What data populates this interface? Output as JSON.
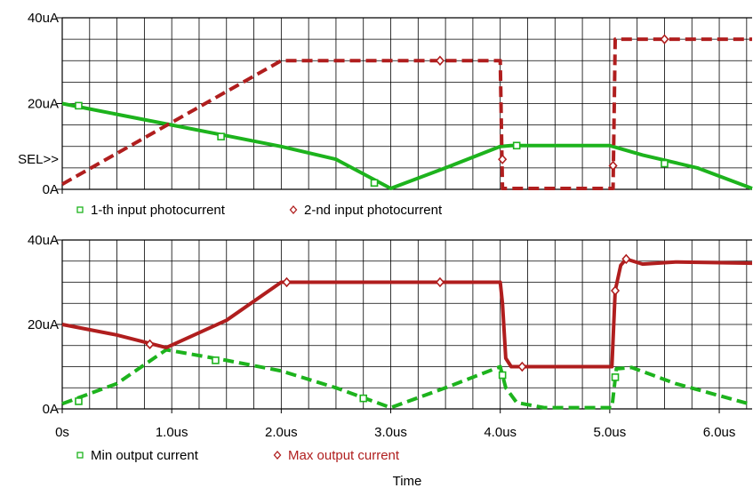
{
  "chart_data": [
    {
      "type": "line",
      "xlim": [
        0,
        6.3
      ],
      "ylim": [
        0,
        40
      ],
      "grid": true,
      "x_ticks": [
        {
          "v": 0,
          "label": ""
        }
      ],
      "y_ticks": [
        {
          "v": 0,
          "label": "0A"
        },
        {
          "v": 20,
          "label": "20uA"
        },
        {
          "v": 40,
          "label": "40uA"
        }
      ],
      "axis_note": "SEL>>",
      "legend_position": "bottom-left",
      "series": [
        {
          "name": "1-th input photocurrent",
          "color": "#1db31d",
          "dash": "solid",
          "marker": "square",
          "points": [
            [
              0,
              20
            ],
            [
              0.5,
              17.5
            ],
            [
              1.0,
              15
            ],
            [
              1.5,
              12.5
            ],
            [
              2.0,
              10
            ],
            [
              2.5,
              7
            ],
            [
              3.0,
              0.2
            ],
            [
              3.5,
              5
            ],
            [
              4.0,
              10
            ],
            [
              4.1,
              10.2
            ],
            [
              5.0,
              10.2
            ],
            [
              5.3,
              8
            ],
            [
              5.8,
              5
            ],
            [
              6.3,
              0.2
            ]
          ],
          "markers": [
            [
              0.15,
              19.5
            ],
            [
              1.45,
              12.3
            ],
            [
              2.85,
              1.5
            ],
            [
              4.15,
              10.2
            ],
            [
              5.5,
              6
            ]
          ]
        },
        {
          "name": "2-nd input photocurrent",
          "color": "#b01e1e",
          "dash": "dashed",
          "marker": "diamond",
          "points": [
            [
              0,
              1.2
            ],
            [
              2.0,
              30
            ],
            [
              4.0,
              30
            ],
            [
              4.02,
              0.2
            ],
            [
              5.03,
              0.2
            ],
            [
              5.05,
              35
            ],
            [
              6.3,
              35
            ]
          ],
          "markers": [
            [
              3.45,
              30
            ],
            [
              4.02,
              7
            ],
            [
              5.03,
              5.5
            ],
            [
              5.5,
              35
            ]
          ]
        }
      ]
    },
    {
      "type": "line",
      "xlim": [
        0,
        6.3
      ],
      "ylim": [
        0,
        40
      ],
      "grid": true,
      "x_ticks": [
        {
          "v": 0,
          "label": "0s"
        },
        {
          "v": 1,
          "label": "1.0us"
        },
        {
          "v": 2,
          "label": "2.0us"
        },
        {
          "v": 3,
          "label": "3.0us"
        },
        {
          "v": 4,
          "label": "4.0us"
        },
        {
          "v": 5,
          "label": "5.0us"
        },
        {
          "v": 6,
          "label": "6.0us"
        }
      ],
      "y_ticks": [
        {
          "v": 0,
          "label": "0A"
        },
        {
          "v": 20,
          "label": "20uA"
        },
        {
          "v": 40,
          "label": "40uA"
        }
      ],
      "xlabel": "Time",
      "legend_position": "bottom-left",
      "series": [
        {
          "name": "Min output current",
          "color": "#1db31d",
          "dash": "dashed",
          "marker": "square",
          "points": [
            [
              0,
              1.2
            ],
            [
              0.5,
              6
            ],
            [
              0.95,
              14
            ],
            [
              1.5,
              11.5
            ],
            [
              2.0,
              9
            ],
            [
              2.5,
              5
            ],
            [
              3.0,
              0.3
            ],
            [
              3.5,
              5
            ],
            [
              4.0,
              10
            ],
            [
              4.05,
              5
            ],
            [
              4.15,
              1.5
            ],
            [
              4.4,
              0.3
            ],
            [
              5.02,
              0.3
            ],
            [
              5.06,
              9.5
            ],
            [
              5.2,
              9.8
            ],
            [
              5.6,
              6
            ],
            [
              6.3,
              1
            ]
          ],
          "markers": [
            [
              0.15,
              1.8
            ],
            [
              1.4,
              11.5
            ],
            [
              2.75,
              2.5
            ],
            [
              4.02,
              8
            ],
            [
              5.05,
              7.5
            ]
          ]
        },
        {
          "name": "Max output current",
          "color": "#b01e1e",
          "dash": "solid",
          "marker": "diamond",
          "points": [
            [
              0,
              20
            ],
            [
              0.5,
              17.5
            ],
            [
              0.95,
              14.5
            ],
            [
              1.5,
              21
            ],
            [
              2.0,
              30
            ],
            [
              4.0,
              30
            ],
            [
              4.02,
              25
            ],
            [
              4.05,
              12
            ],
            [
              4.1,
              10
            ],
            [
              5.02,
              10
            ],
            [
              5.05,
              28
            ],
            [
              5.1,
              34
            ],
            [
              5.15,
              35.5
            ],
            [
              5.3,
              34.3
            ],
            [
              5.6,
              34.8
            ],
            [
              6.3,
              34.5
            ]
          ],
          "markers": [
            [
              0.8,
              15.3
            ],
            [
              2.05,
              30
            ],
            [
              3.45,
              30
            ],
            [
              4.2,
              10
            ],
            [
              5.05,
              28
            ],
            [
              5.15,
              35.5
            ]
          ]
        }
      ]
    }
  ]
}
